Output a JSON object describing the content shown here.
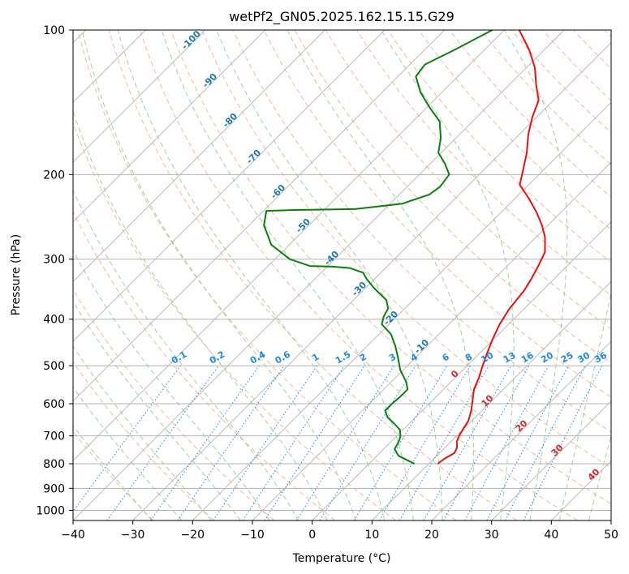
{
  "chart_data": {
    "type": "line",
    "title": "wetPf2_GN05.2025.162.15.15.G29",
    "xlabel": "Temperature (°C)",
    "ylabel": "Pressure (hPa)",
    "xlim": [
      -40,
      50
    ],
    "ylim": [
      1050,
      100
    ],
    "y_scale": "log",
    "x_ticks": [
      -40,
      -30,
      -20,
      -10,
      0,
      10,
      20,
      30,
      40,
      50
    ],
    "y_ticks": [
      100,
      200,
      300,
      400,
      500,
      600,
      700,
      800,
      900,
      1000
    ],
    "grid": true,
    "skew": true,
    "series": [
      {
        "color": "#e8110f",
        "points": [
          [
            11.5,
            800
          ],
          [
            11.8,
            780
          ],
          [
            12.5,
            760
          ],
          [
            12.0,
            740
          ],
          [
            11.0,
            720
          ],
          [
            10.4,
            700
          ],
          [
            10.0,
            680
          ],
          [
            9.4,
            650
          ],
          [
            8.2,
            620
          ],
          [
            6.7,
            590
          ],
          [
            5.1,
            560
          ],
          [
            4.0,
            530
          ],
          [
            2.6,
            500
          ],
          [
            1.2,
            470
          ],
          [
            -0.2,
            440
          ],
          [
            -1.5,
            410
          ],
          [
            -2.5,
            380
          ],
          [
            -3.0,
            350
          ],
          [
            -3.8,
            330
          ],
          [
            -4.8,
            310
          ],
          [
            -6.0,
            290
          ],
          [
            -8.5,
            270
          ],
          [
            -11.0,
            255
          ],
          [
            -14.0,
            240
          ],
          [
            -17.5,
            225
          ],
          [
            -21.5,
            210
          ],
          [
            -23.5,
            195
          ],
          [
            -25.7,
            180
          ],
          [
            -28.5,
            165
          ],
          [
            -30.7,
            152
          ],
          [
            -32.5,
            140
          ],
          [
            -35.5,
            130
          ],
          [
            -38.5,
            120
          ],
          [
            -42.5,
            110
          ],
          [
            -47.5,
            100
          ]
        ]
      },
      {
        "color": "#0a800a",
        "points": [
          [
            7.6,
            800
          ],
          [
            6.3,
            790
          ],
          [
            3.6,
            770
          ],
          [
            1.8,
            745
          ],
          [
            1.3,
            720
          ],
          [
            0.6,
            700
          ],
          [
            -0.5,
            680
          ],
          [
            -2.5,
            660
          ],
          [
            -4.7,
            640
          ],
          [
            -6.2,
            620
          ],
          [
            -6.2,
            600
          ],
          [
            -6.0,
            580
          ],
          [
            -6.0,
            560
          ],
          [
            -7.5,
            540
          ],
          [
            -10.5,
            510
          ],
          [
            -13.0,
            480
          ],
          [
            -15.3,
            455
          ],
          [
            -18.0,
            430
          ],
          [
            -21.2,
            410
          ],
          [
            -22.2,
            395
          ],
          [
            -22.8,
            380
          ],
          [
            -24.5,
            365
          ],
          [
            -28.5,
            345
          ],
          [
            -31.3,
            330
          ],
          [
            -33.0,
            320
          ],
          [
            -36.0,
            313
          ],
          [
            -39.0,
            311
          ],
          [
            -43.0,
            310
          ],
          [
            -47.5,
            300
          ],
          [
            -53.0,
            280
          ],
          [
            -57.5,
            255
          ],
          [
            -59.5,
            238
          ],
          [
            -55.0,
            237
          ],
          [
            -45.0,
            236
          ],
          [
            -38.0,
            230
          ],
          [
            -35.0,
            220
          ],
          [
            -34.5,
            212
          ],
          [
            -35.0,
            200
          ],
          [
            -37.5,
            190
          ],
          [
            -40.5,
            180
          ],
          [
            -42.5,
            168
          ],
          [
            -45.5,
            155
          ],
          [
            -49.5,
            145
          ],
          [
            -53.5,
            135
          ],
          [
            -57.0,
            125
          ],
          [
            -57.5,
            118
          ],
          [
            -55.0,
            110
          ],
          [
            -52.0,
            100
          ]
        ]
      }
    ],
    "dry_adiabat_labels": [
      "-100",
      "-90",
      "-80",
      "-70",
      "-60",
      "-50",
      "-40",
      "-30",
      "-20",
      "-10"
    ],
    "moist_adiabat_labels": [
      "0",
      "10",
      "20",
      "30",
      "40"
    ],
    "mixing_ratio_labels": [
      "0.1",
      "0.2",
      "0.4",
      "0.6",
      "1",
      "1.5",
      "2",
      "3",
      "4",
      "6",
      "8",
      "10",
      "13",
      "16",
      "20",
      "25",
      "30",
      "36"
    ],
    "colors": {
      "isotherm": "#b3b3b3",
      "isobar": "#b3b3b3",
      "dry_adiabat": "#f0a080",
      "moist_adiabat": "#90c890",
      "mixing_ratio": "#1e88e5",
      "reference": "#d2b48c"
    }
  }
}
